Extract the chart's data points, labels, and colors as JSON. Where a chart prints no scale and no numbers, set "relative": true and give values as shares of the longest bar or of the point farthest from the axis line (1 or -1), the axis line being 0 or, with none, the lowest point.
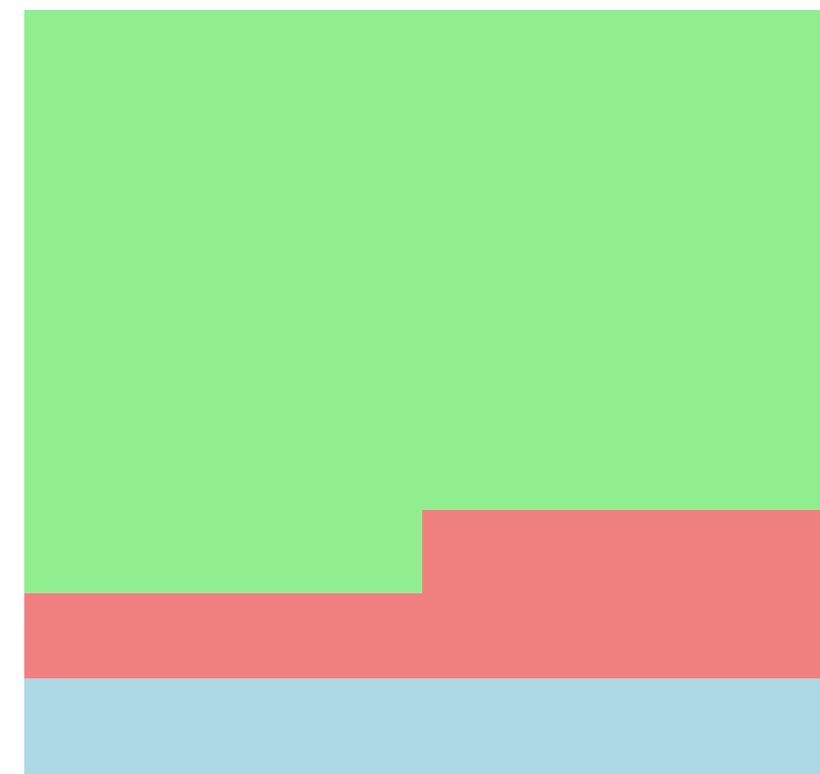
{
  "chart_data": {
    "type": "bar",
    "stacked": true,
    "relative": true,
    "categories": [
      null,
      null
    ],
    "series": [
      {
        "color": "#add8e6",
        "values": [
          0.125,
          0.125
        ]
      },
      {
        "color": "#f08080",
        "values": [
          0.112,
          0.221
        ]
      },
      {
        "color": "#90ee90",
        "values": [
          0.763,
          0.654
        ]
      }
    ]
  }
}
